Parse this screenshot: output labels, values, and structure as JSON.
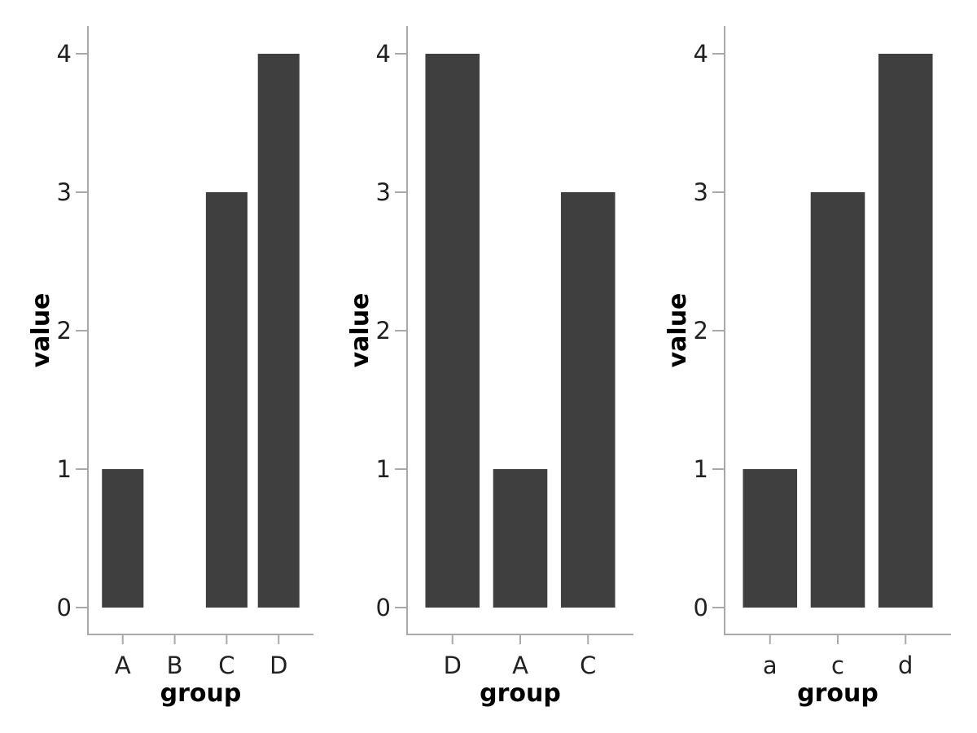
{
  "figure": {
    "background": "#ffffff",
    "description": "Three bar chart panels side by side, no titles, no legend"
  },
  "style": {
    "bar_color": "#3f3f3f",
    "axis_color": "#a9a9a9",
    "tick_label_color": "#212121",
    "axis_title_color": "#000000"
  },
  "chart_data": [
    {
      "type": "bar",
      "panel": "left",
      "categories": [
        "A",
        "B",
        "C",
        "D"
      ],
      "values": [
        1,
        0,
        3,
        4
      ],
      "title": "",
      "xlabel": "group",
      "ylabel": "value",
      "ylim": [
        0,
        4
      ],
      "yticks": [
        0,
        1,
        2,
        3,
        4
      ],
      "grid": false,
      "legend": false
    },
    {
      "type": "bar",
      "panel": "middle",
      "categories": [
        "D",
        "A",
        "C"
      ],
      "values": [
        4,
        1,
        3
      ],
      "title": "",
      "xlabel": "group",
      "ylabel": "value",
      "ylim": [
        0,
        4
      ],
      "yticks": [
        0,
        1,
        2,
        3,
        4
      ],
      "grid": false,
      "legend": false
    },
    {
      "type": "bar",
      "panel": "right",
      "categories": [
        "a",
        "c",
        "d"
      ],
      "values": [
        1,
        3,
        4
      ],
      "title": "",
      "xlabel": "group",
      "ylabel": "value",
      "ylim": [
        0,
        4
      ],
      "yticks": [
        0,
        1,
        2,
        3,
        4
      ],
      "grid": false,
      "legend": false
    }
  ]
}
